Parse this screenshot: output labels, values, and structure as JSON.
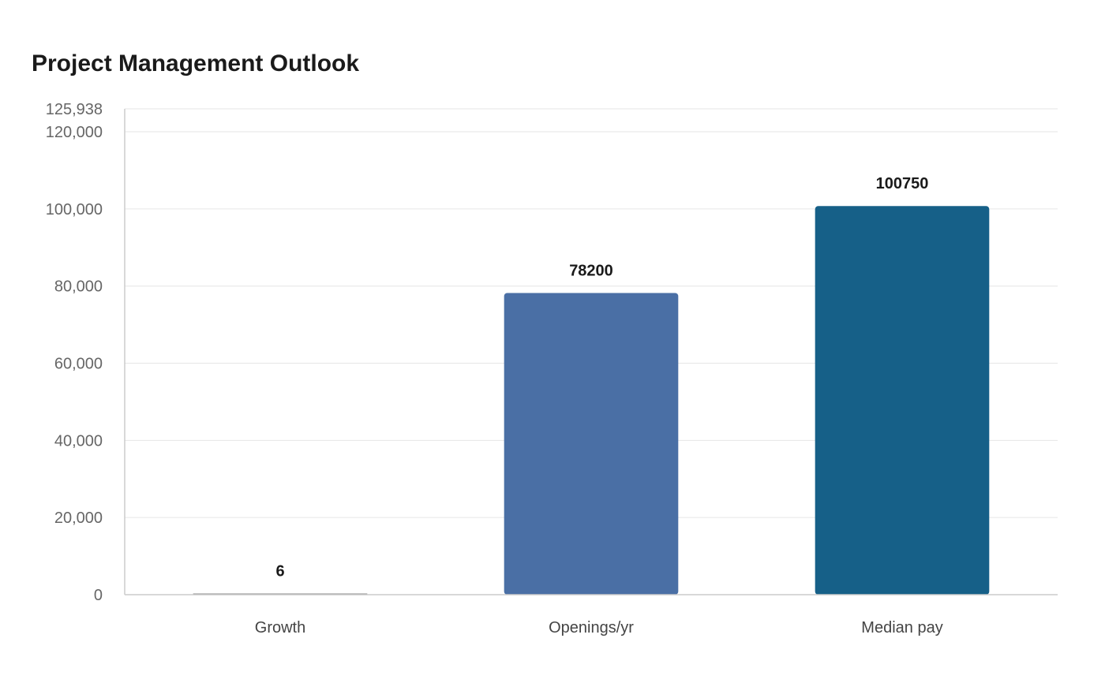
{
  "chart_data": {
    "type": "bar",
    "title": "Project Management Outlook",
    "xlabel": "",
    "ylabel": "",
    "categories": [
      "Growth",
      "Openings/yr",
      "Median pay"
    ],
    "values": [
      6,
      78200,
      100750
    ],
    "data_labels": [
      "6",
      "78200",
      "100750"
    ],
    "bar_colors": [
      "#8a8a8a",
      "#4a6fa5",
      "#166088"
    ],
    "ylim": [
      0,
      125938
    ],
    "y_ticks": [
      0,
      20000,
      40000,
      60000,
      80000,
      100000,
      120000,
      125938
    ],
    "y_tick_labels": [
      "0",
      "20,000",
      "40,000",
      "60,000",
      "80,000",
      "100,000",
      "120,000",
      "125,938"
    ],
    "grid": true,
    "legend": "none"
  }
}
